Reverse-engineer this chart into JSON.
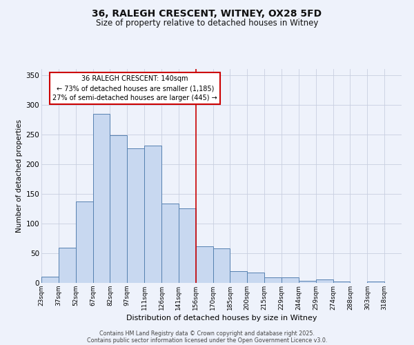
{
  "title": "36, RALEGH CRESCENT, WITNEY, OX28 5FD",
  "subtitle": "Size of property relative to detached houses in Witney",
  "xlabel": "Distribution of detached houses by size in Witney",
  "ylabel": "Number of detached properties",
  "bar_labels": [
    "23sqm",
    "37sqm",
    "52sqm",
    "67sqm",
    "82sqm",
    "97sqm",
    "111sqm",
    "126sqm",
    "141sqm",
    "156sqm",
    "170sqm",
    "185sqm",
    "200sqm",
    "215sqm",
    "229sqm",
    "244sqm",
    "259sqm",
    "274sqm",
    "288sqm",
    "303sqm",
    "318sqm"
  ],
  "bar_values": [
    10,
    59,
    137,
    285,
    248,
    226,
    231,
    134,
    125,
    62,
    58,
    20,
    17,
    9,
    9,
    4,
    6,
    2,
    0,
    2,
    0
  ],
  "bar_color": "#c8d8f0",
  "bar_edge_color": "#5580b0",
  "annotation_title": "36 RALEGH CRESCENT: 140sqm",
  "annotation_line1": "← 73% of detached houses are smaller (1,185)",
  "annotation_line2": "27% of semi-detached houses are larger (445) →",
  "annotation_box_color": "#ffffff",
  "annotation_box_edge_color": "#cc0000",
  "vline_color": "#cc0000",
  "ylim": [
    0,
    360
  ],
  "yticks": [
    0,
    50,
    100,
    150,
    200,
    250,
    300,
    350
  ],
  "footer1": "Contains HM Land Registry data © Crown copyright and database right 2025.",
  "footer2": "Contains public sector information licensed under the Open Government Licence v3.0.",
  "bg_color": "#eef2fb",
  "grid_color": "#c8cfe0",
  "title_fontsize": 10,
  "subtitle_fontsize": 8.5,
  "xlabel_fontsize": 8,
  "ylabel_fontsize": 7.5,
  "tick_fontsize": 6.5,
  "footer_fontsize": 5.8
}
